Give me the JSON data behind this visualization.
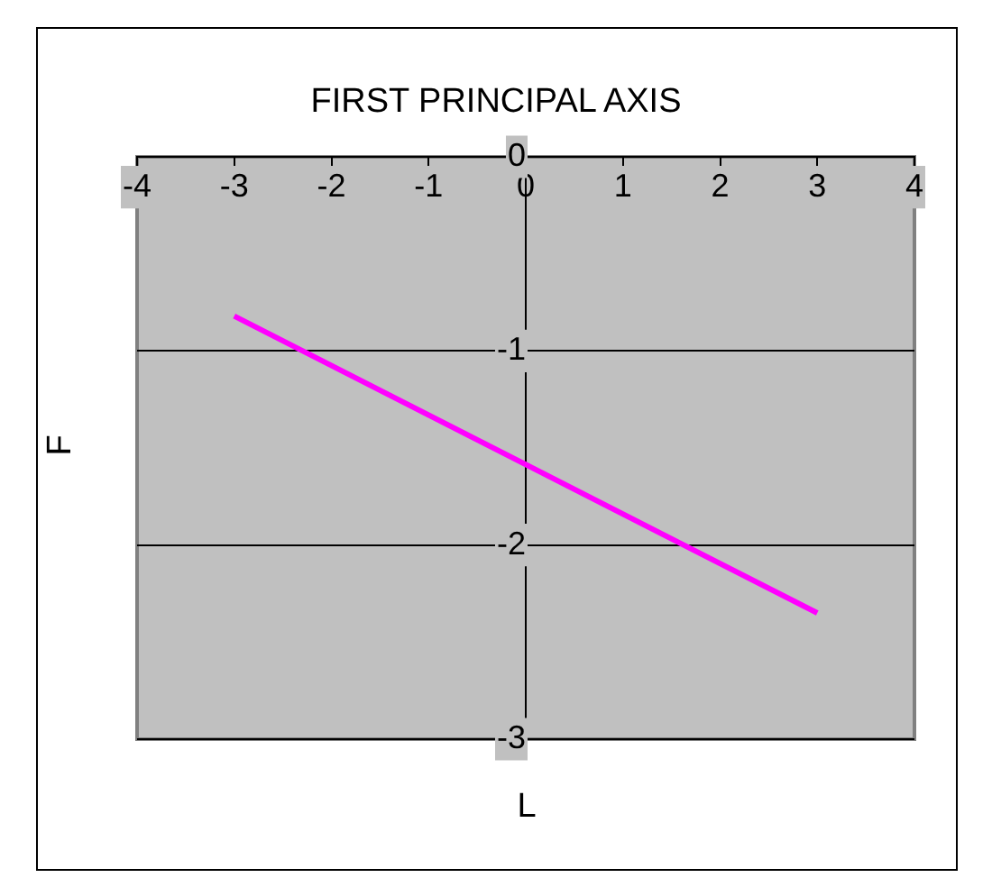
{
  "chart_data": {
    "type": "line",
    "title": "FIRST PRINCIPAL AXIS",
    "xlabel": "L",
    "ylabel": "F",
    "x": [
      -3,
      3
    ],
    "series": [
      {
        "color": "#ff00ff",
        "values": [
          -0.82,
          -2.35
        ]
      }
    ],
    "xlim": [
      -4,
      4
    ],
    "xticks": [
      -4,
      -3,
      -2,
      -1,
      0,
      1,
      2,
      3,
      4
    ],
    "ylim": [
      -3,
      0
    ],
    "yticks": [
      -3,
      -2,
      -1,
      0
    ],
    "grid": "y",
    "legend": false,
    "marker": "none",
    "line_style": "solid"
  }
}
